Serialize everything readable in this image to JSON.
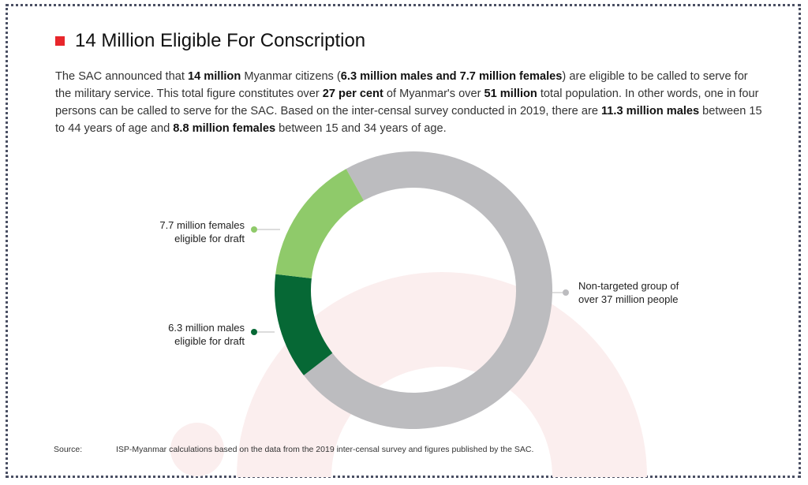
{
  "title": "14 Million Eligible For Conscription",
  "paragraph": [
    {
      "t": "The SAC announced that ",
      "b": false
    },
    {
      "t": "14 million",
      "b": true
    },
    {
      "t": " Myanmar citizens (",
      "b": false
    },
    {
      "t": "6.3 million males and 7.7 million females",
      "b": true
    },
    {
      "t": ") are eligible to be called to serve for the military service. This total figure constitutes over ",
      "b": false
    },
    {
      "t": "27 per cent",
      "b": true
    },
    {
      "t": " of Myanmar's over ",
      "b": false
    },
    {
      "t": "51 million",
      "b": true
    },
    {
      "t": " total population. In other words, one in four persons can be called to serve for the SAC. Based on the inter-censal survey conducted in 2019, there are ",
      "b": false
    },
    {
      "t": "11.3 million males",
      "b": true
    },
    {
      "t": " between 15 to 44 years of age and ",
      "b": false
    },
    {
      "t": "8.8 million females",
      "b": true
    },
    {
      "t": " between 15 and 34 years of age.",
      "b": false
    }
  ],
  "chart_data": {
    "type": "pie",
    "donut": true,
    "unit": "million people",
    "slices": [
      {
        "label_line1": "Non-targeted group of",
        "label_line2": "over 37 million people",
        "value": 37,
        "color": "#bcbcbf"
      },
      {
        "label_line1": "6.3 million males",
        "label_line2": "eligible for draft",
        "value": 6.3,
        "color": "#066835"
      },
      {
        "label_line1": "7.7 million females",
        "label_line2": "eligible for draft",
        "value": 7.7,
        "color": "#8fca6a"
      }
    ]
  },
  "source": {
    "label": "Source:",
    "text": "ISP-Myanmar calculations based on the data from the 2019 inter-censal survey and figures published by the SAC."
  },
  "colors": {
    "accent": "#e8262b",
    "border": "#4a4f63",
    "watermark": "#fbeeee"
  }
}
